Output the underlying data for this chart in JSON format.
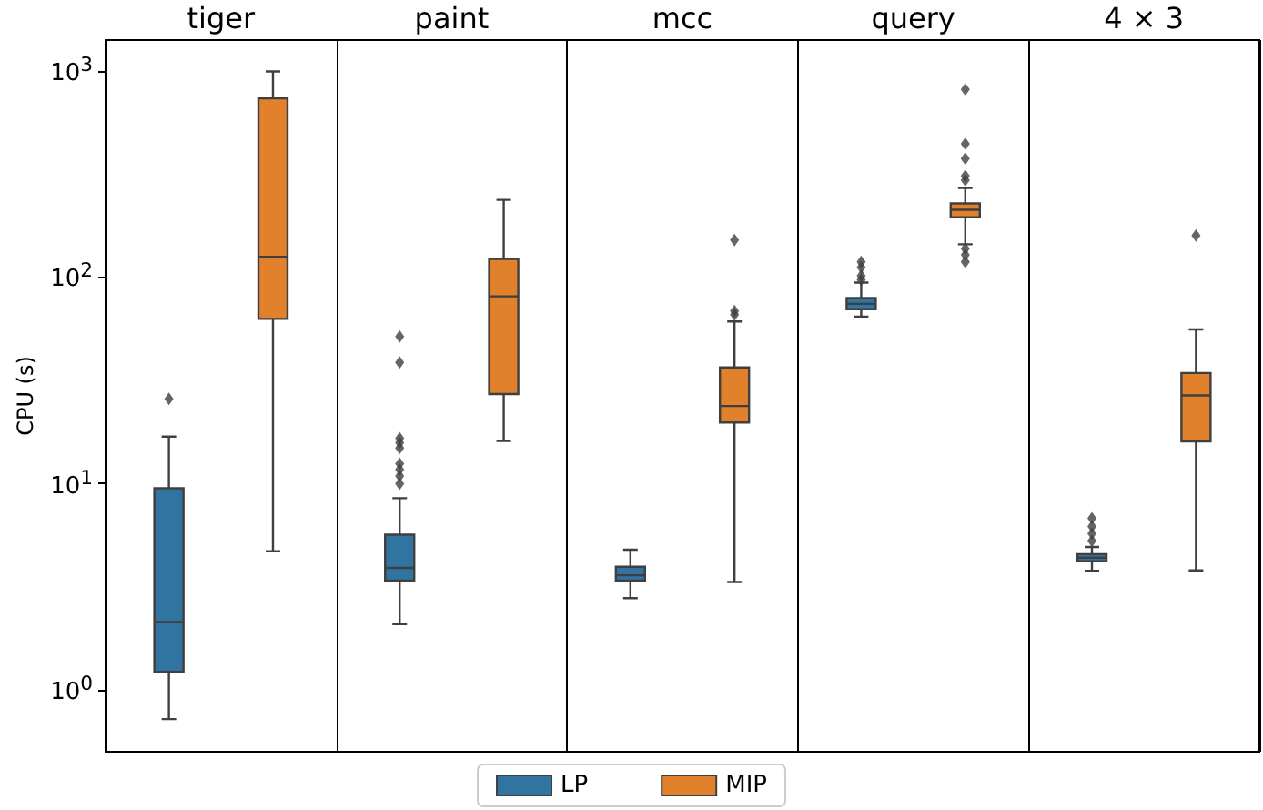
{
  "chart_data": {
    "type": "box",
    "ylabel": "CPU (s)",
    "categories": [
      "tiger",
      "paint",
      "mcc",
      "query",
      "4 × 3"
    ],
    "log": true,
    "ylim": [
      0.5,
      1420
    ],
    "yticks": [
      {
        "value": 1,
        "label": "10$^{0}$"
      },
      {
        "value": 10,
        "label": "10$^{1}$"
      },
      {
        "value": 100,
        "label": "10$^{2}$"
      },
      {
        "value": 1000,
        "label": "10$^{3}$"
      }
    ],
    "grid": false,
    "legend": "bottom",
    "marker": "diamond",
    "series": [
      {
        "name": "LP",
        "color": "#3274a1",
        "boxes": [
          {
            "low": 0.72,
            "q1": 1.22,
            "median": 2.13,
            "q3": 9.5,
            "high": 16.9,
            "outliers": [
              25.8
            ]
          },
          {
            "low": 2.08,
            "q1": 3.38,
            "median": 3.9,
            "q3": 5.65,
            "high": 8.5,
            "outliers": [
              10.0,
              10.9,
              11.7,
              12.5,
              14.9,
              15.8,
              16.6,
              38.7,
              51.7
            ]
          },
          {
            "low": 2.78,
            "q1": 3.38,
            "median": 3.59,
            "q3": 3.95,
            "high": 4.78
          },
          {
            "low": 64.6,
            "q1": 70.2,
            "median": 74.5,
            "q3": 79.6,
            "high": 94.5,
            "outliers": [
              97.5,
              102,
              112,
              119
            ]
          },
          {
            "low": 3.77,
            "q1": 4.2,
            "median": 4.37,
            "q3": 4.55,
            "high": 4.93,
            "outliers": [
              5.28,
              5.73,
              6.2,
              6.79
            ]
          }
        ]
      },
      {
        "name": "MIP",
        "color": "#e1812c",
        "boxes": [
          {
            "low": 4.7,
            "q1": 63,
            "median": 126,
            "q3": 740,
            "high": 1000
          },
          {
            "low": 16.1,
            "q1": 27.2,
            "median": 81,
            "q3": 123,
            "high": 238
          },
          {
            "low": 3.33,
            "q1": 19.8,
            "median": 23.8,
            "q3": 36.6,
            "high": 61.2,
            "outliers": [
              66,
              68.7,
              152
            ]
          },
          {
            "low": 145,
            "q1": 196,
            "median": 213,
            "q3": 229,
            "high": 272,
            "outliers": [
              119,
              129,
              138,
              297,
              311,
              378,
              445,
              818
            ]
          },
          {
            "low": 3.79,
            "q1": 16.0,
            "median": 26.8,
            "q3": 34.4,
            "high": 56,
            "outliers": [
              160
            ]
          }
        ]
      }
    ]
  }
}
